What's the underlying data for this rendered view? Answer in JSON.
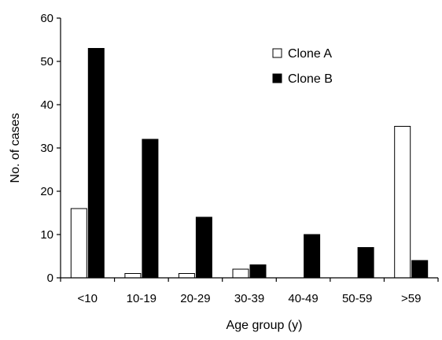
{
  "chart_data": {
    "type": "bar",
    "title": "",
    "xlabel": "Age group (y)",
    "ylabel": "No. of cases",
    "ylim": [
      0,
      60
    ],
    "yticks": [
      0,
      10,
      20,
      30,
      40,
      50,
      60
    ],
    "categories": [
      "<10",
      "10-19",
      "20-29",
      "30-39",
      "40-49",
      "50-59",
      ">59"
    ],
    "series": [
      {
        "name": "Clone A",
        "values": [
          16,
          1,
          1,
          2,
          0,
          0,
          35
        ],
        "color": "#ffffff"
      },
      {
        "name": "Clone B",
        "values": [
          53,
          32,
          14,
          3,
          10,
          7,
          4
        ],
        "color": "#000000"
      }
    ],
    "grid": false,
    "legend": "top-right"
  }
}
